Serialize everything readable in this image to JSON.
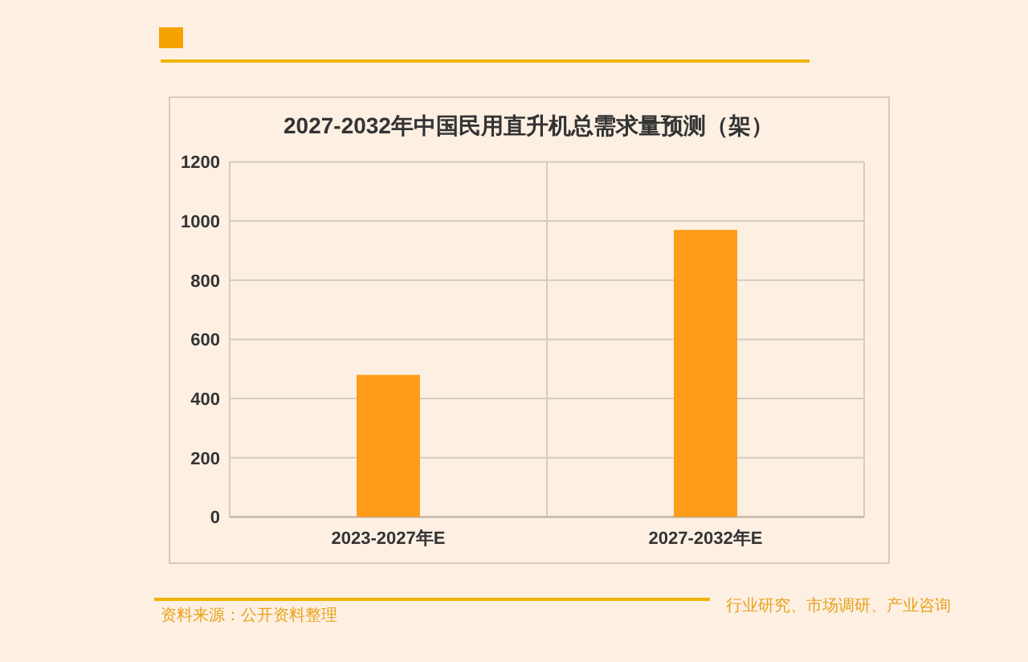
{
  "chart_data": {
    "type": "bar",
    "title": "2027-2032年中国民用直升机总需求量预测（架）",
    "categories": [
      "2023-2027年E",
      "2027-2032年E"
    ],
    "values": [
      480,
      970
    ],
    "color": "#ff9c1a",
    "ylim": [
      0,
      1200
    ],
    "yticks": [
      0,
      200,
      400,
      600,
      800,
      1000,
      1200
    ],
    "grid": true,
    "annotations": [
      "资料来源：公开资料整理",
      "行业研究、市场调研、产业咨询"
    ]
  }
}
